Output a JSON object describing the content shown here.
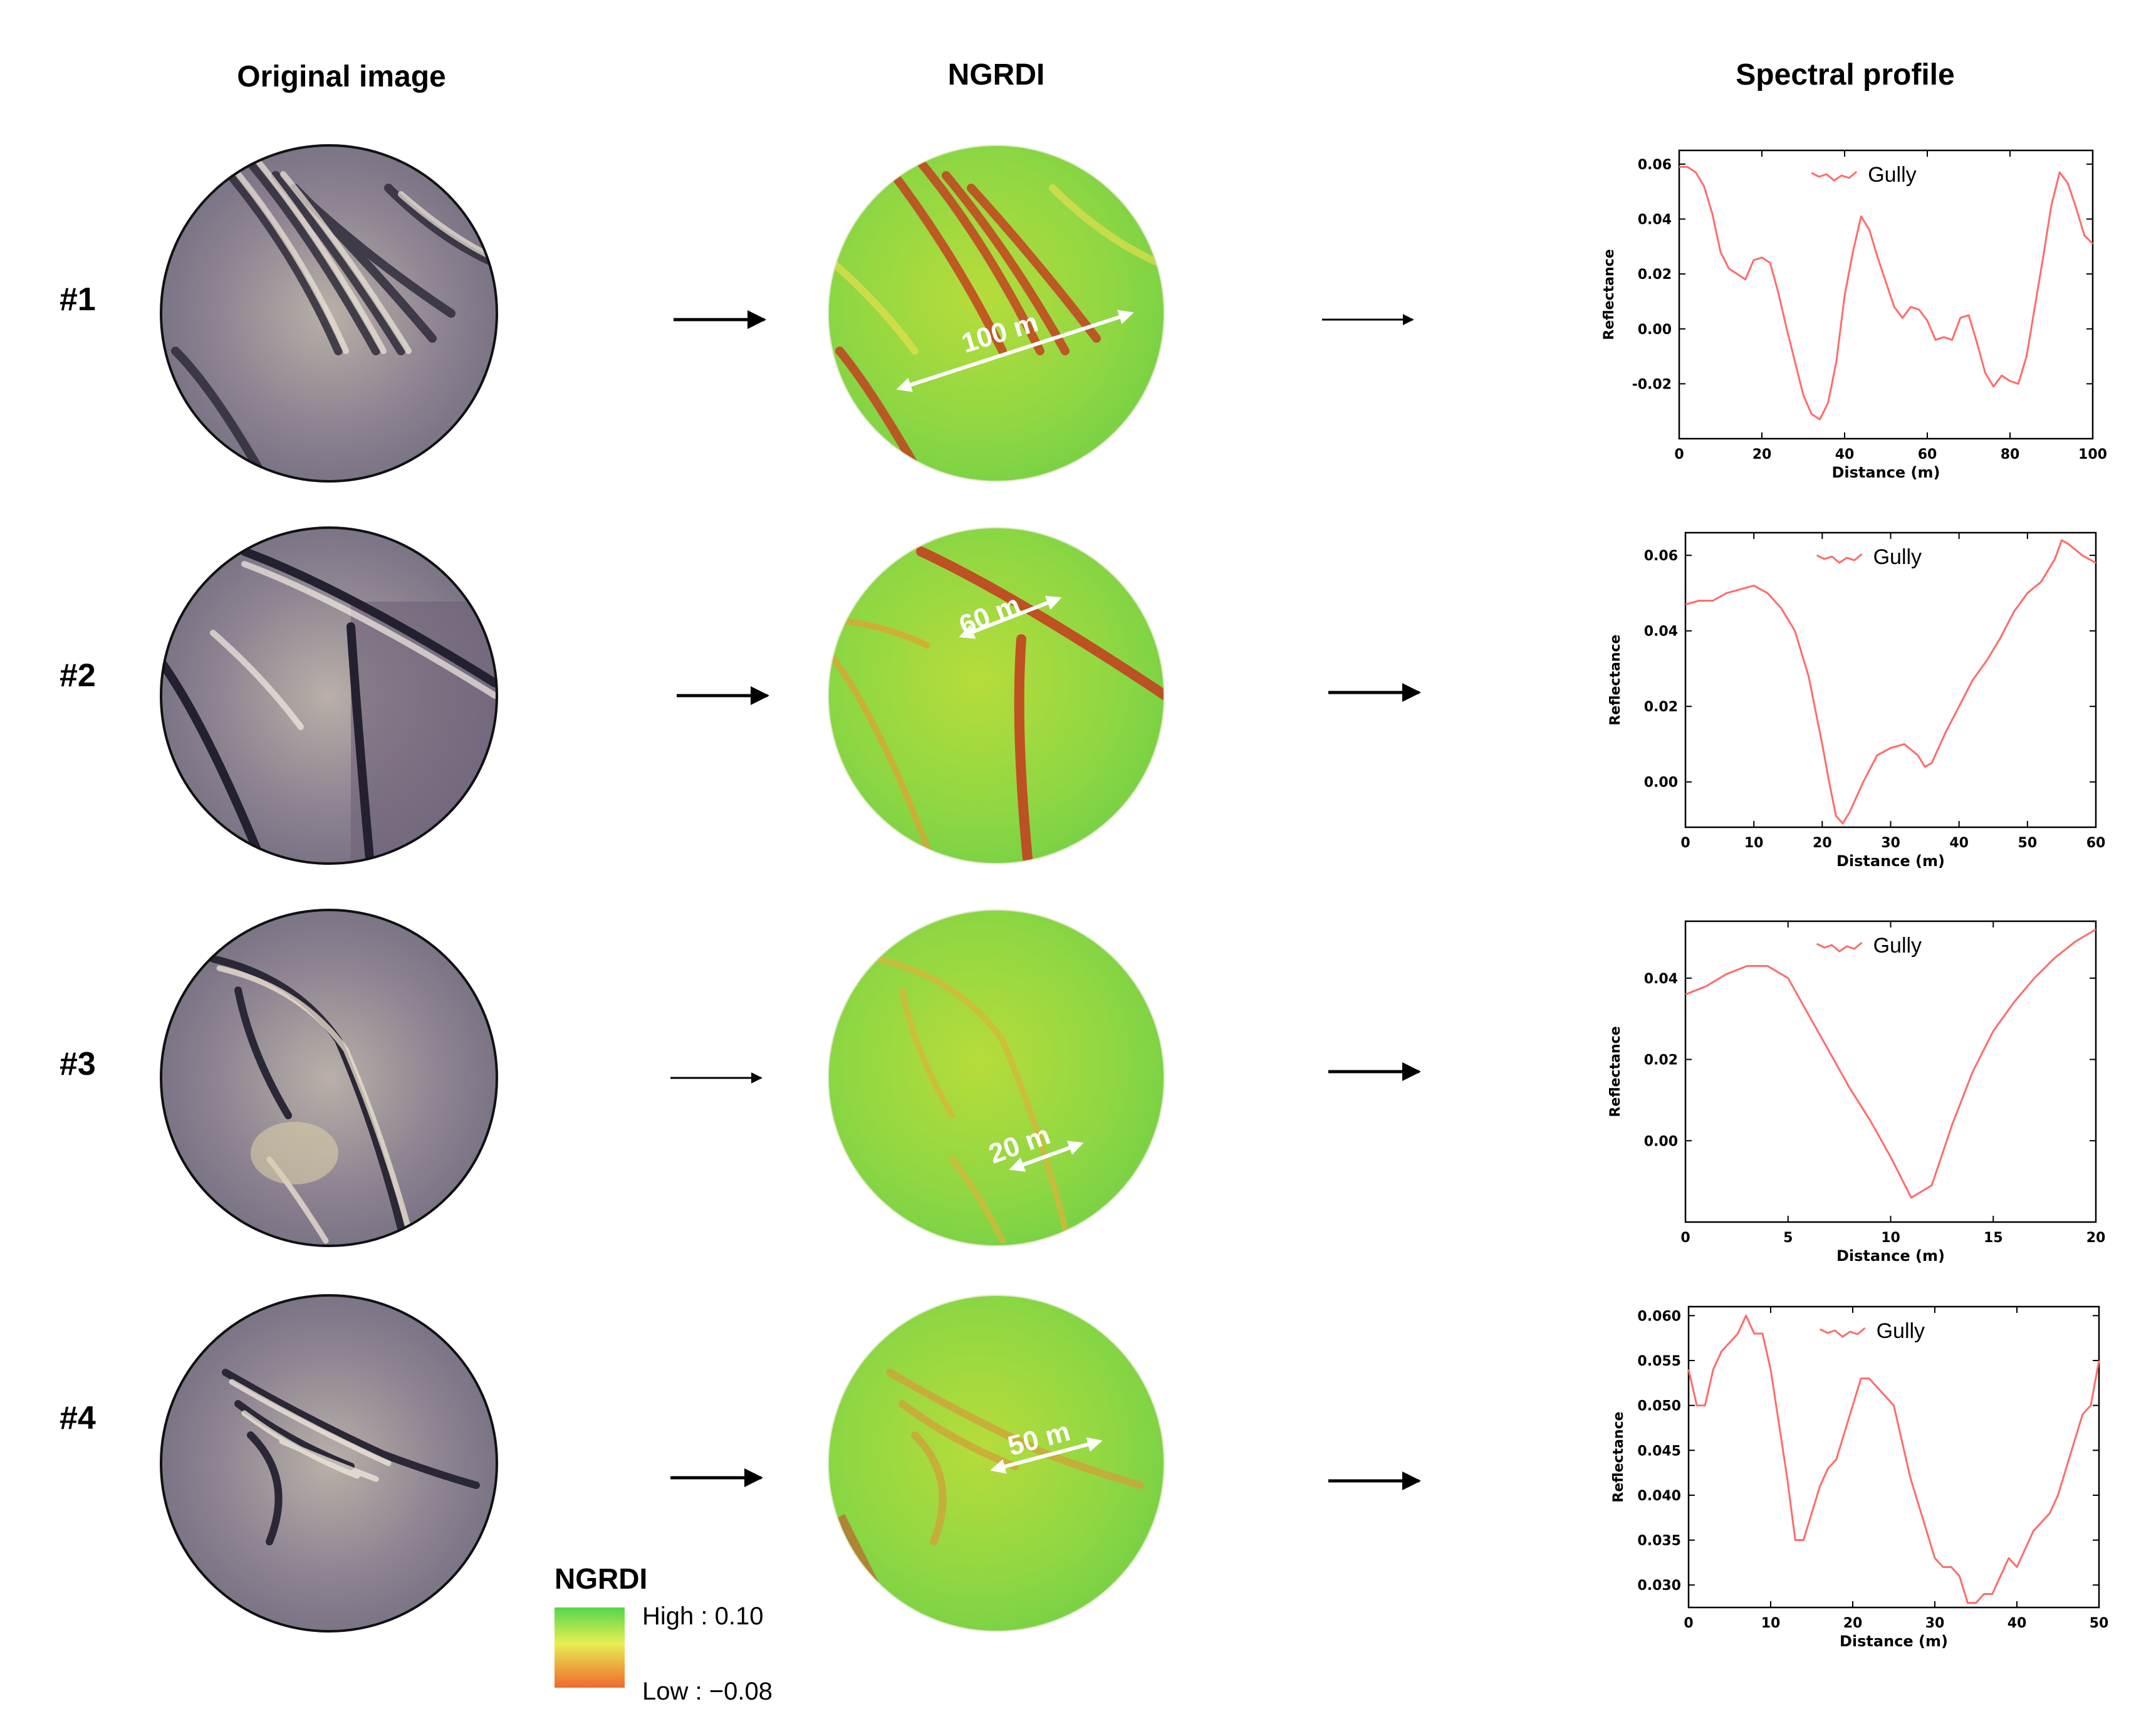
{
  "titles": {
    "original": "Original image",
    "ngrdi": "NGRDI",
    "spectral": "Spectral profile"
  },
  "rows": [
    {
      "label": "#1",
      "scale_label": "100 m"
    },
    {
      "label": "#2",
      "scale_label": "60 m"
    },
    {
      "label": "#3",
      "scale_label": "20 m"
    },
    {
      "label": "#4",
      "scale_label": "50 m"
    }
  ],
  "ngrdi_legend": {
    "title": "NGRDI",
    "high": "High : 0.10",
    "low": "Low : −0.08",
    "colors": {
      "high": "#54d64a",
      "mid": "#f1f04a",
      "low": "#ef6a2e"
    }
  },
  "colors": {
    "profile_line": "#ff6b6b",
    "arrow": "#000000"
  },
  "chart_data": [
    {
      "type": "line",
      "title": "",
      "xlabel": "Distance (m)",
      "ylabel": "Reflectance",
      "xlim": [
        0,
        100
      ],
      "ylim": [
        -0.04,
        0.065
      ],
      "xticks": [
        "0",
        "20",
        "40",
        "60",
        "80",
        "100"
      ],
      "yticks": [
        "-0.02",
        "0.00",
        "0.02",
        "0.04",
        "0.06"
      ],
      "legend": "Gully",
      "series": [
        {
          "name": "Gully",
          "x": [
            0,
            2,
            4,
            6,
            8,
            10,
            12,
            14,
            16,
            18,
            20,
            22,
            24,
            26,
            28,
            30,
            32,
            34,
            36,
            38,
            40,
            42,
            44,
            46,
            48,
            50,
            52,
            54,
            56,
            58,
            60,
            62,
            64,
            66,
            68,
            70,
            72,
            74,
            76,
            78,
            80,
            82,
            84,
            86,
            88,
            90,
            92,
            94,
            96,
            98,
            100
          ],
          "y": [
            0.059,
            0.059,
            0.057,
            0.052,
            0.042,
            0.028,
            0.022,
            0.02,
            0.018,
            0.025,
            0.026,
            0.024,
            0.013,
            0.0,
            -0.012,
            -0.024,
            -0.031,
            -0.033,
            -0.027,
            -0.012,
            0.012,
            0.028,
            0.041,
            0.036,
            0.026,
            0.017,
            0.008,
            0.004,
            0.008,
            0.007,
            0.003,
            -0.004,
            -0.003,
            -0.004,
            0.004,
            0.005,
            -0.005,
            -0.016,
            -0.021,
            -0.017,
            -0.019,
            -0.02,
            -0.01,
            0.008,
            0.026,
            0.045,
            0.057,
            0.053,
            0.044,
            0.034,
            0.031
          ]
        }
      ]
    },
    {
      "type": "line",
      "title": "",
      "xlabel": "Distance (m)",
      "ylabel": "Reflectance",
      "xlim": [
        0,
        60
      ],
      "ylim": [
        -0.012,
        0.066
      ],
      "xticks": [
        "0",
        "10",
        "20",
        "30",
        "40",
        "50",
        "60"
      ],
      "yticks": [
        "0.00",
        "0.02",
        "0.04",
        "0.06"
      ],
      "legend": "Gully",
      "series": [
        {
          "name": "Gully",
          "x": [
            0,
            2,
            4,
            6,
            8,
            10,
            12,
            14,
            16,
            18,
            20,
            21,
            22,
            23,
            24,
            26,
            28,
            30,
            32,
            34,
            35,
            36,
            38,
            40,
            42,
            44,
            46,
            48,
            50,
            52,
            54,
            55,
            56,
            58,
            60
          ],
          "y": [
            0.047,
            0.048,
            0.048,
            0.05,
            0.051,
            0.052,
            0.05,
            0.046,
            0.04,
            0.028,
            0.01,
            0.0,
            -0.009,
            -0.011,
            -0.008,
            0.0,
            0.007,
            0.009,
            0.01,
            0.007,
            0.004,
            0.005,
            0.013,
            0.02,
            0.027,
            0.032,
            0.038,
            0.045,
            0.05,
            0.053,
            0.059,
            0.064,
            0.063,
            0.06,
            0.058
          ]
        }
      ]
    },
    {
      "type": "line",
      "title": "",
      "xlabel": "Distance (m)",
      "ylabel": "Reflectance",
      "xlim": [
        0,
        20
      ],
      "ylim": [
        -0.02,
        0.054
      ],
      "xticks": [
        "0",
        "5",
        "10",
        "15",
        "20"
      ],
      "yticks": [
        "0.00",
        "0.02",
        "0.04"
      ],
      "legend": "Gully",
      "series": [
        {
          "name": "Gully",
          "x": [
            0,
            1,
            2,
            3,
            4,
            5,
            6,
            7,
            8,
            9,
            10,
            10.5,
            11,
            12,
            13,
            14,
            15,
            16,
            17,
            18,
            19,
            20
          ],
          "y": [
            0.036,
            0.038,
            0.041,
            0.043,
            0.043,
            0.04,
            0.031,
            0.022,
            0.013,
            0.005,
            -0.004,
            -0.009,
            -0.014,
            -0.011,
            0.004,
            0.017,
            0.027,
            0.034,
            0.04,
            0.045,
            0.049,
            0.052
          ]
        }
      ]
    },
    {
      "type": "line",
      "title": "",
      "xlabel": "Distance (m)",
      "ylabel": "Reflectance",
      "xlim": [
        0,
        50
      ],
      "ylim": [
        0.0275,
        0.061
      ],
      "xticks": [
        "0",
        "10",
        "20",
        "30",
        "40",
        "50"
      ],
      "yticks": [
        "0.030",
        "0.035",
        "0.040",
        "0.045",
        "0.050",
        "0.055",
        "0.060"
      ],
      "legend": "Gully",
      "series": [
        {
          "name": "Gully",
          "x": [
            0,
            1,
            2,
            3,
            4,
            5,
            6,
            7,
            8,
            9,
            10,
            11,
            12,
            13,
            14,
            15,
            16,
            17,
            18,
            19,
            20,
            21,
            22,
            23,
            24,
            25,
            26,
            27,
            28,
            29,
            30,
            31,
            32,
            33,
            34,
            35,
            36,
            37,
            38,
            39,
            40,
            41,
            42,
            43,
            44,
            45,
            46,
            47,
            48,
            49,
            50
          ],
          "y": [
            0.054,
            0.05,
            0.05,
            0.054,
            0.056,
            0.057,
            0.058,
            0.06,
            0.058,
            0.058,
            0.054,
            0.048,
            0.042,
            0.035,
            0.035,
            0.038,
            0.041,
            0.043,
            0.044,
            0.047,
            0.05,
            0.053,
            0.053,
            0.052,
            0.051,
            0.05,
            0.046,
            0.042,
            0.039,
            0.036,
            0.033,
            0.032,
            0.032,
            0.031,
            0.028,
            0.028,
            0.029,
            0.029,
            0.031,
            0.033,
            0.032,
            0.034,
            0.036,
            0.037,
            0.038,
            0.04,
            0.043,
            0.046,
            0.049,
            0.05,
            0.055
          ]
        }
      ]
    }
  ]
}
